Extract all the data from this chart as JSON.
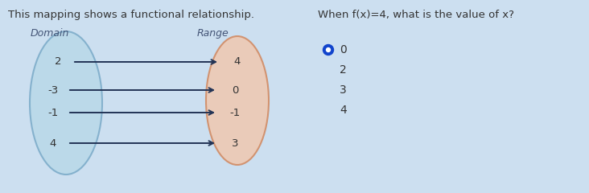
{
  "title_left": "This mapping shows a functional relationship.",
  "title_right": "When f(x)=4, what is the value of x?",
  "domain_label": "Domain",
  "range_label": "Range",
  "domain_values": [
    "2",
    "-3",
    "-1",
    "4"
  ],
  "range_values": [
    "4",
    "0",
    "-1",
    "3"
  ],
  "arrows": [
    [
      0,
      0
    ],
    [
      1,
      1
    ],
    [
      2,
      2
    ],
    [
      3,
      3
    ]
  ],
  "radio_options": [
    "0",
    "2",
    "3",
    "4"
  ],
  "radio_selected": 0,
  "bg_color": "#ccdff0",
  "domain_ellipse_facecolor": "#b8d8e8",
  "domain_ellipse_edgecolor": "#7aaac8",
  "range_ellipse_facecolor": "#f0c8b0",
  "range_ellipse_edgecolor": "#d08860",
  "arrow_color": "#223355",
  "text_color": "#333333",
  "label_color": "#445577",
  "radio_color_selected": "#1144cc",
  "radio_color_unselected_edge": "#888899"
}
